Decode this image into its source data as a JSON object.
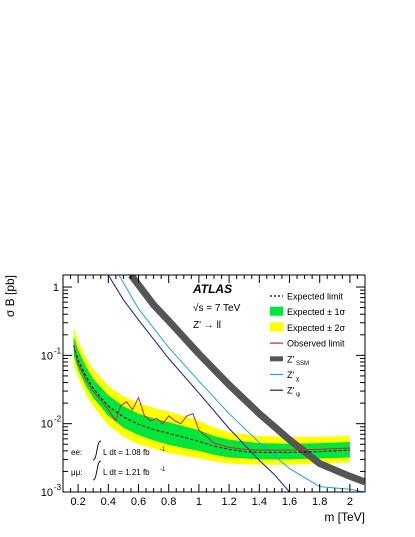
{
  "chart_data": {
    "type": "line",
    "xlabel": "m [TeV]",
    "ylabel": "σ B [pb]",
    "xlim": [
      0.1,
      2.1
    ],
    "ylim": [
      0.001,
      1.5
    ],
    "yscale": "log",
    "grid": false,
    "legend_position": "top-right",
    "x_ticks": [
      {
        "v": 0.2,
        "label": "0.2"
      },
      {
        "v": 0.4,
        "label": "0.4"
      },
      {
        "v": 0.6,
        "label": "0.6"
      },
      {
        "v": 0.8,
        "label": "0.8"
      },
      {
        "v": 1.0,
        "label": "1"
      },
      {
        "v": 1.2,
        "label": "1.2"
      },
      {
        "v": 1.4,
        "label": "1.4"
      },
      {
        "v": 1.6,
        "label": "1.6"
      },
      {
        "v": 1.8,
        "label": "1.8"
      },
      {
        "v": 2.0,
        "label": "2"
      }
    ],
    "y_ticks": [
      {
        "v": 0.001,
        "base": "10",
        "exp": "-3"
      },
      {
        "v": 0.01,
        "base": "10",
        "exp": "-2"
      },
      {
        "v": 0.1,
        "base": "10",
        "exp": "-1"
      },
      {
        "v": 1,
        "base": "1",
        "exp": ""
      }
    ],
    "experiment": "ATLAS",
    "energy_text": "√s = 7 TeV",
    "process_text": "Z' → ll",
    "lumi": [
      {
        "channel": "ee:",
        "text": "L dt = 1.08 fb",
        "exp": "-1"
      },
      {
        "channel": "μμ:",
        "text": "L dt = 1.21 fb",
        "exp": "-1"
      }
    ],
    "legend": [
      {
        "label": "Expected limit",
        "sub": "",
        "kind": "dashed",
        "color": "#000000"
      },
      {
        "label": "Expected ± 1σ",
        "sub": "",
        "kind": "box",
        "color": "#00e63c"
      },
      {
        "label": "Expected ± 2σ",
        "sub": "",
        "kind": "box",
        "color": "#ffff00"
      },
      {
        "label": "Observed limit",
        "sub": "",
        "kind": "line",
        "color": "#d62020"
      },
      {
        "label": "Z'",
        "sub": "SSM",
        "kind": "thick",
        "color": "#555555"
      },
      {
        "label": "Z'",
        "sub": "χ",
        "kind": "line",
        "color": "#1fa7e0"
      },
      {
        "label": "Z'",
        "sub": "ψ",
        "kind": "line",
        "color": "#1a1aa0"
      }
    ],
    "series": [
      {
        "name": "Expected limit",
        "x": [
          0.17,
          0.2,
          0.25,
          0.3,
          0.35,
          0.4,
          0.5,
          0.6,
          0.7,
          0.8,
          0.9,
          1.0,
          1.1,
          1.2,
          1.3,
          1.4,
          1.6,
          1.8,
          2.0
        ],
        "values": [
          0.14,
          0.085,
          0.05,
          0.033,
          0.024,
          0.018,
          0.0125,
          0.0098,
          0.0082,
          0.0072,
          0.0063,
          0.0055,
          0.0047,
          0.0042,
          0.0039,
          0.0038,
          0.0038,
          0.0039,
          0.0041
        ]
      },
      {
        "name": "Observed limit",
        "x": [
          0.17,
          0.2,
          0.25,
          0.3,
          0.35,
          0.4,
          0.45,
          0.48,
          0.52,
          0.56,
          0.6,
          0.64,
          0.68,
          0.72,
          0.76,
          0.8,
          0.84,
          0.88,
          0.92,
          0.96,
          1.0,
          1.05,
          1.1,
          1.2,
          1.3,
          1.4,
          1.6,
          1.8,
          2.0
        ],
        "values": [
          0.14,
          0.075,
          0.045,
          0.03,
          0.022,
          0.016,
          0.011,
          0.018,
          0.021,
          0.016,
          0.024,
          0.013,
          0.011,
          0.012,
          0.01,
          0.013,
          0.011,
          0.01,
          0.013,
          0.014,
          0.008,
          0.0065,
          0.0052,
          0.0045,
          0.0042,
          0.0041,
          0.0041,
          0.0042,
          0.0044
        ]
      },
      {
        "name": "Z'_SSM",
        "x": [
          0.55,
          0.7,
          0.8,
          1.0,
          1.2,
          1.4,
          1.6,
          1.8,
          2.0,
          2.1
        ],
        "values": [
          1.5,
          0.55,
          0.32,
          0.105,
          0.037,
          0.014,
          0.0058,
          0.0026,
          0.0017,
          0.0014
        ]
      },
      {
        "name": "Z'_χ",
        "x": [
          0.47,
          0.6,
          0.8,
          1.0,
          1.2,
          1.4,
          1.6,
          1.8,
          2.0,
          2.1
        ],
        "values": [
          1.5,
          0.48,
          0.13,
          0.042,
          0.014,
          0.0053,
          0.0022,
          0.0012,
          0.0011,
          0.001
        ]
      },
      {
        "name": "Z'_ψ",
        "x": [
          0.4,
          0.5,
          0.6,
          0.8,
          1.0,
          1.2,
          1.4,
          1.5,
          1.6
        ],
        "values": [
          1.5,
          0.65,
          0.33,
          0.09,
          0.028,
          0.0085,
          0.0029,
          0.0018,
          0.001
        ]
      }
    ],
    "bands": {
      "x": [
        0.17,
        0.2,
        0.25,
        0.3,
        0.4,
        0.5,
        0.6,
        0.7,
        0.8,
        0.9,
        1.0,
        1.1,
        1.2,
        1.4,
        1.6,
        1.8,
        2.0
      ],
      "plus2": [
        0.26,
        0.16,
        0.095,
        0.063,
        0.036,
        0.025,
        0.02,
        0.017,
        0.015,
        0.013,
        0.011,
        0.0088,
        0.0075,
        0.0066,
        0.0064,
        0.0064,
        0.0066
      ],
      "plus1": [
        0.19,
        0.12,
        0.07,
        0.045,
        0.026,
        0.018,
        0.014,
        0.012,
        0.0105,
        0.0092,
        0.008,
        0.0066,
        0.0058,
        0.0052,
        0.0051,
        0.0052,
        0.0054
      ],
      "minus1": [
        0.1,
        0.062,
        0.036,
        0.024,
        0.013,
        0.0087,
        0.0068,
        0.0057,
        0.0049,
        0.0044,
        0.004,
        0.0035,
        0.0032,
        0.003,
        0.003,
        0.0031,
        0.0032
      ],
      "minus2": [
        0.075,
        0.048,
        0.027,
        0.018,
        0.0095,
        0.0064,
        0.005,
        0.0043,
        0.0037,
        0.0034,
        0.0031,
        0.0028,
        0.0026,
        0.0025,
        0.0025,
        0.0026,
        0.0027
      ]
    }
  }
}
